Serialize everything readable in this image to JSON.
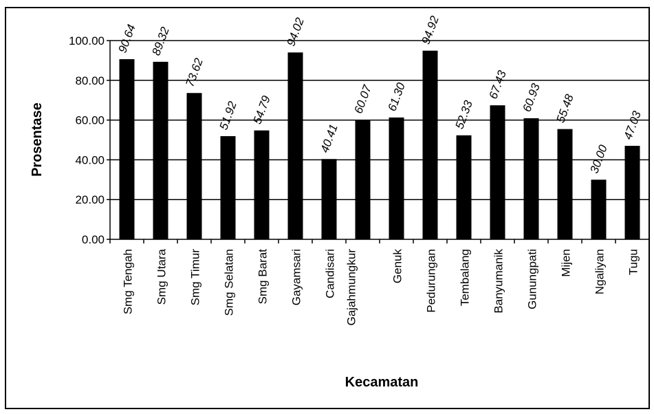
{
  "chart_data": {
    "type": "bar",
    "title": "",
    "xlabel": "Kecamatan",
    "ylabel": "Prosentase",
    "ylim": [
      0,
      100
    ],
    "yticks": [
      "0.00",
      "20.00",
      "40.00",
      "60.00",
      "80.00",
      "100.00"
    ],
    "grid": true,
    "categories": [
      "Smg Tengah",
      "Smg Utara",
      "Smg Timur",
      "Smg Selatan",
      "Smg Barat",
      "Gayamsari",
      "Candisari",
      "Gajahmungkur",
      "Genuk",
      "Pedurungan",
      "Tembalang",
      "Banyumanik",
      "Gunungpati",
      "Mijen",
      "Ngaliyan",
      "Tugu"
    ],
    "values": [
      90.64,
      89.32,
      73.62,
      51.92,
      54.79,
      94.02,
      40.41,
      60.07,
      61.3,
      94.92,
      52.33,
      67.43,
      60.93,
      55.48,
      30.0,
      47.03
    ],
    "data_labels": [
      "90.64",
      "89.32",
      "73.62",
      "51.92",
      "54.79",
      "94.02",
      "40.41",
      "60.07",
      "61.30",
      "94.92",
      "52.33",
      "67.43",
      "60.93",
      "55.48",
      "30.00",
      "47.03"
    ],
    "bar_color": "#000000"
  }
}
